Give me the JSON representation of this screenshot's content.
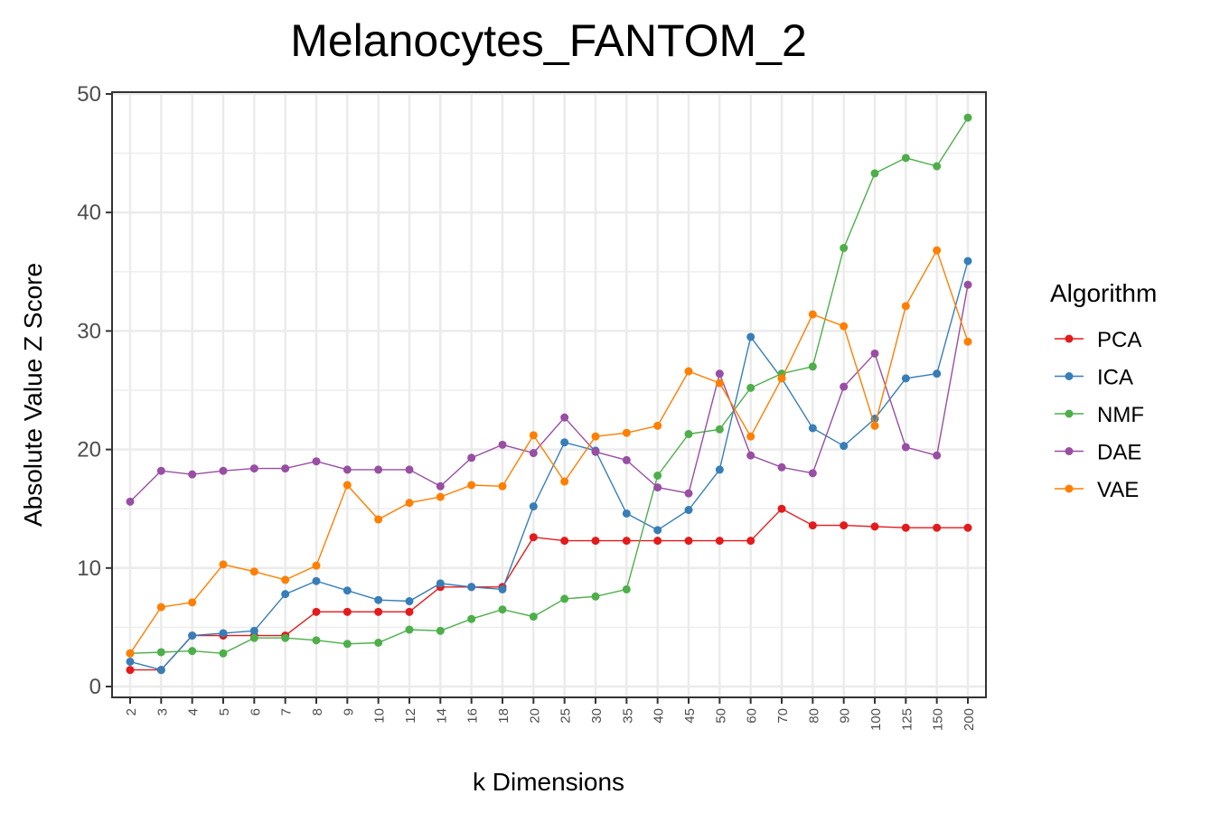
{
  "chart_data": {
    "type": "line",
    "title": "Melanocytes_FANTOM_2",
    "xlabel": "k Dimensions",
    "ylabel": "Absolute Value Z Score",
    "ylim": [
      0,
      50
    ],
    "yticks": [
      0,
      10,
      20,
      30,
      40,
      50
    ],
    "grid": true,
    "legend_title": "Algorithm",
    "legend_position": "right",
    "categories": [
      "2",
      "3",
      "4",
      "5",
      "6",
      "7",
      "8",
      "9",
      "10",
      "12",
      "14",
      "16",
      "18",
      "20",
      "25",
      "30",
      "35",
      "40",
      "45",
      "50",
      "60",
      "70",
      "80",
      "90",
      "100",
      "125",
      "150",
      "200"
    ],
    "series": [
      {
        "name": "PCA",
        "color": "#e41a1c",
        "values": [
          1.4,
          1.4,
          4.3,
          4.3,
          4.3,
          4.3,
          6.3,
          6.3,
          6.3,
          6.3,
          8.4,
          8.4,
          8.4,
          12.6,
          12.3,
          12.3,
          12.3,
          12.3,
          12.3,
          12.3,
          12.3,
          15.0,
          13.6,
          13.6,
          13.5,
          13.4,
          13.4,
          13.4
        ]
      },
      {
        "name": "ICA",
        "color": "#377eb8",
        "values": [
          2.1,
          1.4,
          4.3,
          4.5,
          4.7,
          7.8,
          8.9,
          8.1,
          7.3,
          7.2,
          8.7,
          8.4,
          8.2,
          15.2,
          20.6,
          19.9,
          14.6,
          13.2,
          14.9,
          18.3,
          29.5,
          26.0,
          21.8,
          20.3,
          22.6,
          26.0,
          26.4,
          35.9
        ]
      },
      {
        "name": "NMF",
        "color": "#4daf4a",
        "values": [
          2.8,
          2.9,
          3.0,
          2.8,
          4.1,
          4.1,
          3.9,
          3.6,
          3.7,
          4.8,
          4.7,
          5.7,
          6.5,
          5.9,
          7.4,
          7.6,
          8.2,
          17.8,
          21.3,
          21.7,
          25.2,
          26.4,
          27.0,
          37.0,
          43.3,
          44.6,
          43.9,
          48.0
        ]
      },
      {
        "name": "DAE",
        "color": "#984ea3",
        "values": [
          15.6,
          18.2,
          17.9,
          18.2,
          18.4,
          18.4,
          19.0,
          18.3,
          18.3,
          18.3,
          16.9,
          19.3,
          20.4,
          19.7,
          22.7,
          19.8,
          19.1,
          16.8,
          16.3,
          26.4,
          19.5,
          18.5,
          18.0,
          25.3,
          28.1,
          20.2,
          19.5,
          33.9
        ]
      },
      {
        "name": "VAE",
        "color": "#ff7f00",
        "values": [
          2.8,
          6.7,
          7.1,
          10.3,
          9.7,
          9.0,
          10.2,
          17.0,
          14.1,
          15.5,
          16.0,
          17.0,
          16.9,
          21.2,
          17.3,
          21.1,
          21.4,
          22.0,
          26.6,
          25.6,
          21.1,
          26.0,
          31.4,
          30.4,
          22.0,
          32.1,
          36.8,
          29.1
        ]
      }
    ]
  }
}
